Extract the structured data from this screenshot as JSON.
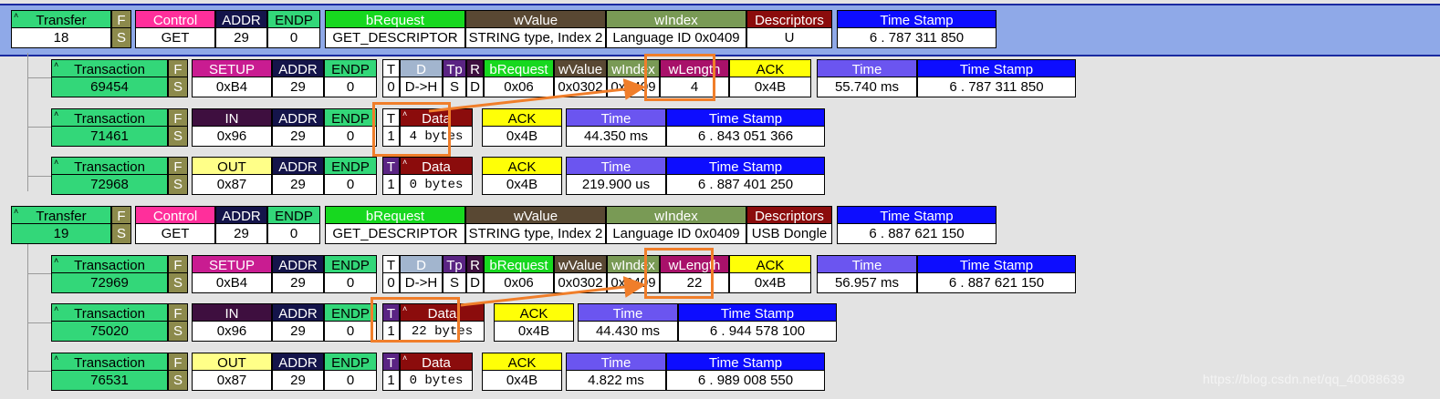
{
  "colors": {
    "green": "#33d779",
    "olive": "#8c8a4c",
    "pink": "#ff2f9b",
    "navy": "#14144a",
    "lime": "#17d81f",
    "brown": "#594833",
    "sage": "#799a55",
    "maroon": "#8b0c0c",
    "blue": "#0d0dff",
    "purple": "#6b55f0",
    "yellow": "#ffff07",
    "magenta_hdr": "#c91c91",
    "violet": "#5a2483",
    "plum": "#3e0f3f",
    "slate": "#a2b5ce",
    "wlen": "#a8116a",
    "pale_yellow": "#ffff88",
    "highlight": "#f07e2a",
    "arrow": "#f07e2a",
    "selection": "#8fa9e8"
  },
  "rows": [
    {
      "name": "transfer-row-18",
      "cells": [
        {
          "name": "transfer-cell",
          "h": "Transfer",
          "v": "18",
          "bg": "green",
          "fg": "#000"
        },
        {
          "name": "flag-cell",
          "h": "F",
          "v": "S",
          "bg": "olive",
          "fg": "#fff",
          "vbg": "olive",
          "vfg": "#fff"
        },
        {
          "name": "control-cell",
          "h": "Control",
          "v": "GET",
          "bg": "pink",
          "fg": "#fff"
        },
        {
          "name": "addr-cell",
          "h": "ADDR",
          "v": "29",
          "bg": "navy",
          "fg": "#fff"
        },
        {
          "name": "endp-cell",
          "h": "ENDP",
          "v": "0",
          "bg": "green",
          "fg": "#000"
        },
        {
          "name": "brequest-cell",
          "h": "bRequest",
          "v": "GET_DESCRIPTOR",
          "bg": "lime",
          "fg": "#fff"
        },
        {
          "name": "wvalue-cell",
          "h": "wValue",
          "v": "STRING type, Index 2",
          "bg": "brown",
          "fg": "#fff"
        },
        {
          "name": "windex-cell",
          "h": "wIndex",
          "v": "Language ID 0x0409",
          "bg": "sage",
          "fg": "#fff"
        },
        {
          "name": "descriptors-cell",
          "h": "Descriptors",
          "v": "U",
          "bg": "maroon",
          "fg": "#fff"
        },
        {
          "name": "timestamp-cell",
          "h": "Time Stamp",
          "v": "6 . 787 311 850",
          "bg": "blue",
          "fg": "#fff"
        }
      ]
    },
    {
      "name": "transaction-row-69454",
      "cells": [
        {
          "name": "transaction-cell",
          "h": "Transaction",
          "v": "69454",
          "bg": "green",
          "fg": "#000",
          "vbg": "green"
        },
        {
          "name": "flag-cell",
          "h": "F",
          "v": "S",
          "bg": "olive",
          "fg": "#fff",
          "vbg": "olive",
          "vfg": "#fff"
        },
        {
          "name": "setup-cell",
          "h": "SETUP",
          "v": "0xB4",
          "bg": "magenta_hdr",
          "fg": "#fff"
        },
        {
          "name": "addr-cell",
          "h": "ADDR",
          "v": "29",
          "bg": "navy",
          "fg": "#fff"
        },
        {
          "name": "endp-cell",
          "h": "ENDP",
          "v": "0",
          "bg": "green",
          "fg": "#000"
        },
        {
          "name": "t-cell",
          "h": "T",
          "v": "0",
          "bg": "#fff",
          "fg": "#000"
        },
        {
          "name": "d-cell",
          "h": "D",
          "v": "D->H",
          "bg": "slate",
          "fg": "#fff"
        },
        {
          "name": "tp-cell",
          "h": "Tp",
          "v": "S",
          "bg": "violet",
          "fg": "#fff"
        },
        {
          "name": "r-cell",
          "h": "R",
          "v": "D",
          "bg": "plum",
          "fg": "#fff"
        },
        {
          "name": "brequest-cell",
          "h": "bRequest",
          "v": "0x06",
          "bg": "lime",
          "fg": "#fff"
        },
        {
          "name": "wvalue-cell",
          "h": "wValue",
          "v": "0x0302",
          "bg": "brown",
          "fg": "#fff"
        },
        {
          "name": "windex-cell",
          "h": "wIndex",
          "v": "0x0409",
          "bg": "sage",
          "fg": "#fff"
        },
        {
          "name": "wlength-cell",
          "h": "wLength",
          "v": "4",
          "bg": "wlen",
          "fg": "#fff"
        },
        {
          "name": "ack-cell",
          "h": "ACK",
          "v": "0x4B",
          "bg": "yellow",
          "fg": "#000"
        },
        {
          "name": "time-cell",
          "h": "Time",
          "v": "55.740 ms",
          "bg": "purple",
          "fg": "#fff"
        },
        {
          "name": "timestamp-cell",
          "h": "Time Stamp",
          "v": "6 . 787 311 850",
          "bg": "blue",
          "fg": "#fff"
        }
      ]
    },
    {
      "name": "transaction-row-71461",
      "cells": [
        {
          "name": "transaction-cell",
          "h": "Transaction",
          "v": "71461",
          "bg": "green",
          "fg": "#000",
          "vbg": "green"
        },
        {
          "name": "flag-cell",
          "h": "F",
          "v": "S",
          "bg": "olive",
          "fg": "#fff",
          "vbg": "olive",
          "vfg": "#fff"
        },
        {
          "name": "in-cell",
          "h": "IN",
          "v": "0x96",
          "bg": "plum",
          "fg": "#fff"
        },
        {
          "name": "addr-cell",
          "h": "ADDR",
          "v": "29",
          "bg": "navy",
          "fg": "#fff"
        },
        {
          "name": "endp-cell",
          "h": "ENDP",
          "v": "0",
          "bg": "green",
          "fg": "#000"
        },
        {
          "name": "t-cell",
          "h": "T",
          "v": "1",
          "bg": "#fff",
          "fg": "#000"
        },
        {
          "name": "data-cell",
          "h": "Data",
          "v": "4 bytes",
          "bg": "maroon",
          "fg": "#fff",
          "mono": true
        },
        {
          "name": "ack-cell",
          "h": "ACK",
          "v": "0x4B",
          "bg": "yellow",
          "fg": "#000"
        },
        {
          "name": "time-cell",
          "h": "Time",
          "v": "44.350 ms",
          "bg": "purple",
          "fg": "#fff"
        },
        {
          "name": "timestamp-cell",
          "h": "Time Stamp",
          "v": "6 . 843 051 366",
          "bg": "blue",
          "fg": "#fff"
        }
      ]
    },
    {
      "name": "transaction-row-72968",
      "cells": [
        {
          "name": "transaction-cell",
          "h": "Transaction",
          "v": "72968",
          "bg": "green",
          "fg": "#000",
          "vbg": "green"
        },
        {
          "name": "flag-cell",
          "h": "F",
          "v": "S",
          "bg": "olive",
          "fg": "#fff",
          "vbg": "olive",
          "vfg": "#fff"
        },
        {
          "name": "out-cell",
          "h": "OUT",
          "v": "0x87",
          "bg": "pale_yellow",
          "fg": "#000"
        },
        {
          "name": "addr-cell",
          "h": "ADDR",
          "v": "29",
          "bg": "navy",
          "fg": "#fff"
        },
        {
          "name": "endp-cell",
          "h": "ENDP",
          "v": "0",
          "bg": "green",
          "fg": "#000"
        },
        {
          "name": "t-cell",
          "h": "T",
          "v": "1",
          "bg": "violet",
          "fg": "#fff"
        },
        {
          "name": "data-cell",
          "h": "Data",
          "v": "0 bytes",
          "bg": "maroon",
          "fg": "#fff",
          "mono": true
        },
        {
          "name": "ack-cell",
          "h": "ACK",
          "v": "0x4B",
          "bg": "yellow",
          "fg": "#000"
        },
        {
          "name": "time-cell",
          "h": "Time",
          "v": "219.900 us",
          "bg": "purple",
          "fg": "#fff"
        },
        {
          "name": "timestamp-cell",
          "h": "Time Stamp",
          "v": "6 . 887 401 250",
          "bg": "blue",
          "fg": "#fff"
        }
      ]
    },
    {
      "name": "transfer-row-19",
      "cells": [
        {
          "name": "transfer-cell",
          "h": "Transfer",
          "v": "19",
          "bg": "green",
          "fg": "#000",
          "vbg": "green"
        },
        {
          "name": "flag-cell",
          "h": "F",
          "v": "S",
          "bg": "olive",
          "fg": "#fff",
          "vbg": "olive",
          "vfg": "#fff"
        },
        {
          "name": "control-cell",
          "h": "Control",
          "v": "GET",
          "bg": "pink",
          "fg": "#fff"
        },
        {
          "name": "addr-cell",
          "h": "ADDR",
          "v": "29",
          "bg": "navy",
          "fg": "#fff"
        },
        {
          "name": "endp-cell",
          "h": "ENDP",
          "v": "0",
          "bg": "green",
          "fg": "#000"
        },
        {
          "name": "brequest-cell",
          "h": "bRequest",
          "v": "GET_DESCRIPTOR",
          "bg": "lime",
          "fg": "#fff"
        },
        {
          "name": "wvalue-cell",
          "h": "wValue",
          "v": "STRING type, Index 2",
          "bg": "brown",
          "fg": "#fff"
        },
        {
          "name": "windex-cell",
          "h": "wIndex",
          "v": "Language ID 0x0409",
          "bg": "sage",
          "fg": "#fff"
        },
        {
          "name": "descriptors-cell",
          "h": "Descriptors",
          "v": "USB Dongle",
          "bg": "maroon",
          "fg": "#fff"
        },
        {
          "name": "timestamp-cell",
          "h": "Time Stamp",
          "v": "6 . 887 621 150",
          "bg": "blue",
          "fg": "#fff"
        }
      ]
    },
    {
      "name": "transaction-row-72969",
      "cells": [
        {
          "name": "transaction-cell",
          "h": "Transaction",
          "v": "72969",
          "bg": "green",
          "fg": "#000",
          "vbg": "green"
        },
        {
          "name": "flag-cell",
          "h": "F",
          "v": "S",
          "bg": "olive",
          "fg": "#fff",
          "vbg": "olive",
          "vfg": "#fff"
        },
        {
          "name": "setup-cell",
          "h": "SETUP",
          "v": "0xB4",
          "bg": "magenta_hdr",
          "fg": "#fff"
        },
        {
          "name": "addr-cell",
          "h": "ADDR",
          "v": "29",
          "bg": "navy",
          "fg": "#fff"
        },
        {
          "name": "endp-cell",
          "h": "ENDP",
          "v": "0",
          "bg": "green",
          "fg": "#000"
        },
        {
          "name": "t-cell",
          "h": "T",
          "v": "0",
          "bg": "#fff",
          "fg": "#000"
        },
        {
          "name": "d-cell",
          "h": "D",
          "v": "D->H",
          "bg": "slate",
          "fg": "#fff"
        },
        {
          "name": "tp-cell",
          "h": "Tp",
          "v": "S",
          "bg": "violet",
          "fg": "#fff"
        },
        {
          "name": "r-cell",
          "h": "R",
          "v": "D",
          "bg": "plum",
          "fg": "#fff"
        },
        {
          "name": "brequest-cell",
          "h": "bRequest",
          "v": "0x06",
          "bg": "lime",
          "fg": "#fff"
        },
        {
          "name": "wvalue-cell",
          "h": "wValue",
          "v": "0x0302",
          "bg": "brown",
          "fg": "#fff"
        },
        {
          "name": "windex-cell",
          "h": "wIndex",
          "v": "0x0409",
          "bg": "sage",
          "fg": "#fff"
        },
        {
          "name": "wlength-cell",
          "h": "wLength",
          "v": "22",
          "bg": "wlen",
          "fg": "#fff"
        },
        {
          "name": "ack-cell",
          "h": "ACK",
          "v": "0x4B",
          "bg": "yellow",
          "fg": "#000"
        },
        {
          "name": "time-cell",
          "h": "Time",
          "v": "56.957 ms",
          "bg": "purple",
          "fg": "#fff"
        },
        {
          "name": "timestamp-cell",
          "h": "Time Stamp",
          "v": "6 . 887 621 150",
          "bg": "blue",
          "fg": "#fff"
        }
      ]
    },
    {
      "name": "transaction-row-75020",
      "cells": [
        {
          "name": "transaction-cell",
          "h": "Transaction",
          "v": "75020",
          "bg": "green",
          "fg": "#000",
          "vbg": "green"
        },
        {
          "name": "flag-cell",
          "h": "F",
          "v": "S",
          "bg": "olive",
          "fg": "#fff",
          "vbg": "olive",
          "vfg": "#fff"
        },
        {
          "name": "in-cell",
          "h": "IN",
          "v": "0x96",
          "bg": "plum",
          "fg": "#fff"
        },
        {
          "name": "addr-cell",
          "h": "ADDR",
          "v": "29",
          "bg": "navy",
          "fg": "#fff"
        },
        {
          "name": "endp-cell",
          "h": "ENDP",
          "v": "0",
          "bg": "green",
          "fg": "#000"
        },
        {
          "name": "t-cell",
          "h": "T",
          "v": "1",
          "bg": "violet",
          "fg": "#fff"
        },
        {
          "name": "data-cell",
          "h": "Data",
          "v": "22 bytes",
          "bg": "maroon",
          "fg": "#fff",
          "mono": true
        },
        {
          "name": "ack-cell",
          "h": "ACK",
          "v": "0x4B",
          "bg": "yellow",
          "fg": "#000"
        },
        {
          "name": "time-cell",
          "h": "Time",
          "v": "44.430 ms",
          "bg": "purple",
          "fg": "#fff"
        },
        {
          "name": "timestamp-cell",
          "h": "Time Stamp",
          "v": "6 . 944 578 100",
          "bg": "blue",
          "fg": "#fff"
        }
      ]
    },
    {
      "name": "transaction-row-76531",
      "cells": [
        {
          "name": "transaction-cell",
          "h": "Transaction",
          "v": "76531",
          "bg": "green",
          "fg": "#000",
          "vbg": "green"
        },
        {
          "name": "flag-cell",
          "h": "F",
          "v": "S",
          "bg": "olive",
          "fg": "#fff",
          "vbg": "olive",
          "vfg": "#fff"
        },
        {
          "name": "out-cell",
          "h": "OUT",
          "v": "0x87",
          "bg": "pale_yellow",
          "fg": "#000"
        },
        {
          "name": "addr-cell",
          "h": "ADDR",
          "v": "29",
          "bg": "navy",
          "fg": "#fff"
        },
        {
          "name": "endp-cell",
          "h": "ENDP",
          "v": "0",
          "bg": "green",
          "fg": "#000"
        },
        {
          "name": "t-cell",
          "h": "T",
          "v": "1",
          "bg": "violet",
          "fg": "#fff"
        },
        {
          "name": "data-cell",
          "h": "Data",
          "v": "0 bytes",
          "bg": "maroon",
          "fg": "#fff",
          "mono": true
        },
        {
          "name": "ack-cell",
          "h": "ACK",
          "v": "0x4B",
          "bg": "yellow",
          "fg": "#000"
        },
        {
          "name": "time-cell",
          "h": "Time",
          "v": "4.822 ms",
          "bg": "purple",
          "fg": "#fff"
        },
        {
          "name": "timestamp-cell",
          "h": "Time Stamp",
          "v": "6 . 989 008 550",
          "bg": "blue",
          "fg": "#fff"
        }
      ]
    }
  ],
  "watermark": "https://blog.csdn.net/qq_40088639"
}
